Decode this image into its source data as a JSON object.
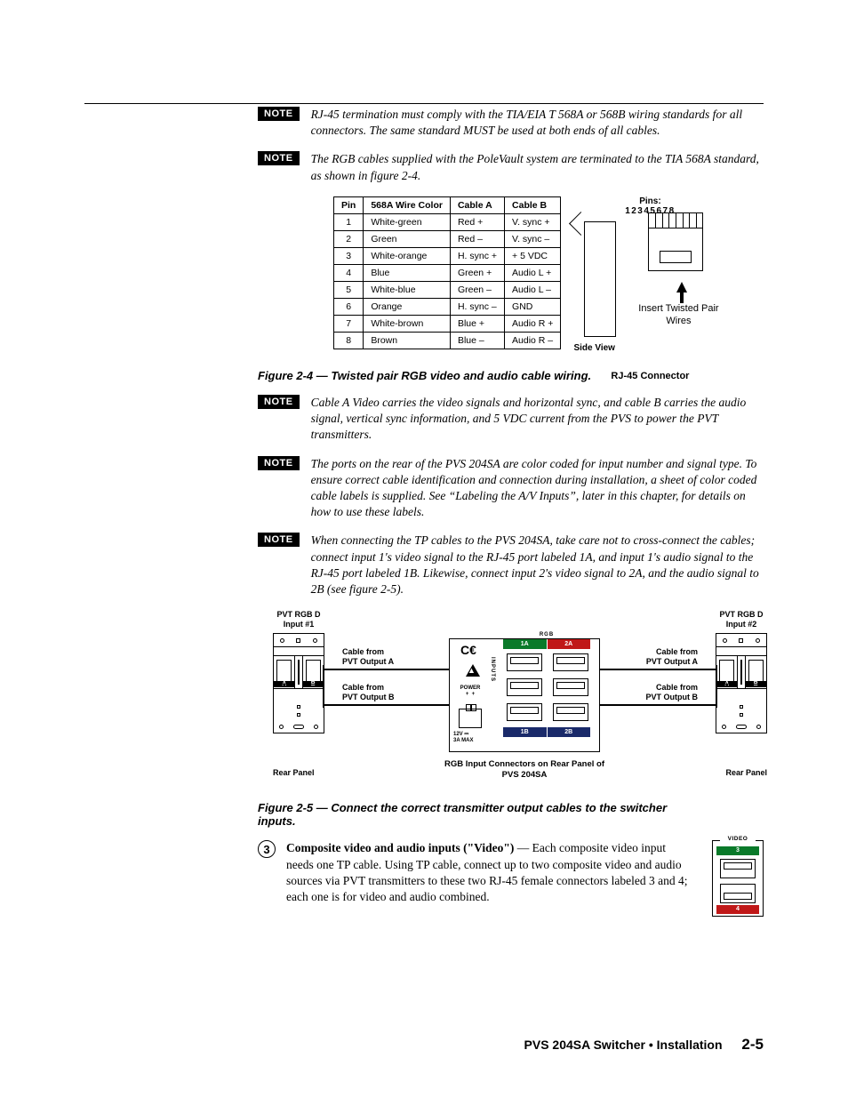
{
  "notes": [
    {
      "badge": "NOTE",
      "text": "RJ-45 termination must comply with the TIA/EIA T 568A or 568B wiring standards for all connectors.  The same standard MUST be used at both ends of all cables."
    },
    {
      "badge": "NOTE",
      "text": "The RGB cables supplied with the PoleVault system are terminated to the TIA 568A standard, as shown in figure 2-4."
    }
  ],
  "pin_table": {
    "headers": [
      "Pin",
      "568A Wire Color",
      "Cable A",
      "Cable B"
    ],
    "rows": [
      [
        "1",
        "White-green",
        "Red +",
        "V. sync +"
      ],
      [
        "2",
        "Green",
        "Red –",
        "V. sync –"
      ],
      [
        "3",
        "White-orange",
        "H. sync +",
        "+ 5 VDC"
      ],
      [
        "4",
        "Blue",
        "Green +",
        "Audio L +"
      ],
      [
        "5",
        "White-blue",
        "Green –",
        "Audio L –"
      ],
      [
        "6",
        "Orange",
        "H. sync –",
        "GND"
      ],
      [
        "7",
        "White-brown",
        "Blue +",
        "Audio R +"
      ],
      [
        "8",
        "Brown",
        "Blue –",
        "Audio R –"
      ]
    ]
  },
  "connector": {
    "pins_label": "Pins:",
    "pins_nums": "12345678",
    "side_view": "Side View",
    "insert": "Insert Twisted Pair Wires",
    "caption": "RJ-45 Connector"
  },
  "fig24_caption": "Figure 2-4 — Twisted pair RGB video and audio cable wiring.",
  "notes2": [
    {
      "badge": "NOTE",
      "text": "Cable A Video carries the video signals and horizontal sync, and cable B carries the audio signal, vertical sync information, and 5 VDC current from the PVS to power the PVT transmitters."
    },
    {
      "badge": "NOTE",
      "text": "The ports on the rear of the PVS 204SA are color coded for input number and signal type.  To ensure correct cable identification and connection during installation, a sheet of color coded cable labels is supplied.  See “Labeling the A/V Inputs”, later in this chapter, for details on how to use these labels."
    },
    {
      "badge": "NOTE",
      "text": "When connecting the TP cables to the PVS 204SA, take care not to cross-connect the cables; connect input 1's video signal to the RJ-45 port labeled 1A, and input 1's audio signal to the RJ-45 port labeled 1B.  Likewise, connect input 2's video signal to 2A, and the audio signal to 2B (see figure 2-5)."
    }
  ],
  "wiring": {
    "pvt1_title": "PVT RGB D Input #1",
    "pvt2_title": "PVT RGB D Input #2",
    "port_a": "A",
    "port_b": "B",
    "cable_a": "Cable from PVT Output A",
    "cable_b": "Cable from PVT Output B",
    "rgb": "RGB",
    "hdr_1a": "1A",
    "hdr_2a": "2A",
    "hdr_1b": "1B",
    "hdr_2b": "2B",
    "ce": "C€",
    "inputs": "INPUTS",
    "power": "POWER + +",
    "pwr_spec1": "12V  ⎓",
    "pwr_spec2": "3A  MAX",
    "rear_panel": "Rear Panel",
    "center_caption": "RGB Input Connectors on Rear Panel of PVS 204SA",
    "colors": {
      "green": "#0a7a2a",
      "red": "#c01818",
      "blue": "#1a2a6a"
    }
  },
  "fig25_caption": "Figure 2-5 — Connect the correct transmitter output cables to the switcher inputs.",
  "step3": {
    "num": "3",
    "bold": "Composite video and audio inputs (\"Video\")",
    "rest": " — Each composite video input needs one TP cable.  Using TP cable, connect up to two composite video and audio sources via PVT transmitters to these two RJ-45 female connectors labeled 3 and 4; each one is for video and audio combined."
  },
  "video_box": {
    "header": "VIDEO",
    "p3": "3",
    "p4": "4"
  },
  "footer": {
    "title": "PVS 204SA Switcher • Installation",
    "page": "2-5"
  }
}
